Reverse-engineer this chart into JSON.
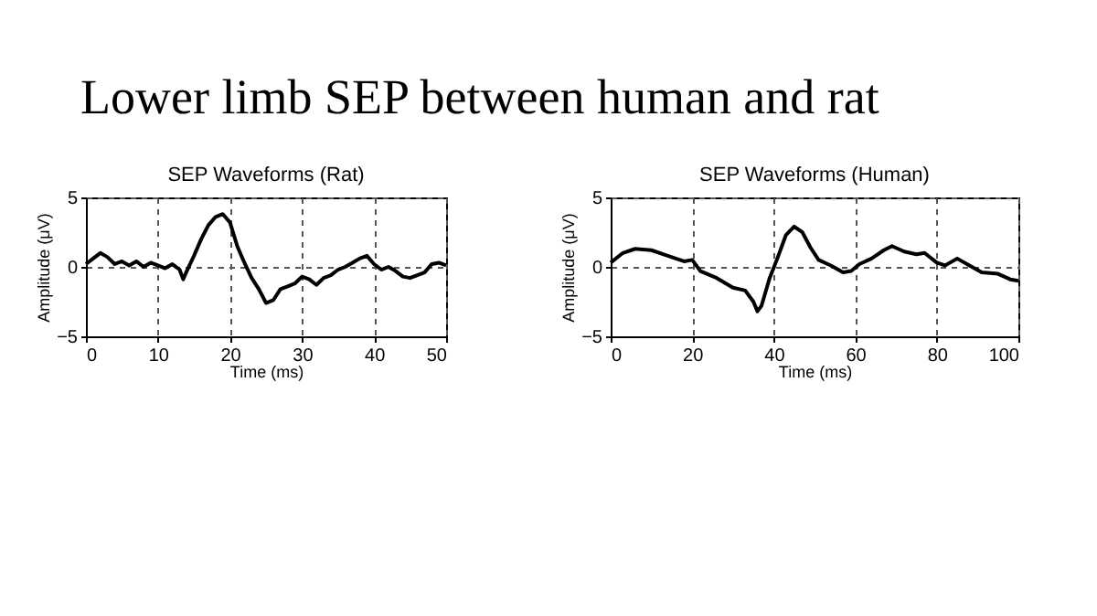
{
  "chart_data": [
    {
      "type": "line",
      "title": "SEP Waveforms (Rat)",
      "xlabel": "Time (ms)",
      "ylabel": "Amplitude (μV)",
      "annotations": [
        "Lower limb SEP between human and rat"
      ],
      "x": [
        0,
        1,
        2,
        3,
        4,
        5,
        6,
        7,
        8,
        9,
        10,
        11,
        12,
        13,
        13.5,
        14,
        15,
        16,
        17,
        18,
        19,
        20,
        21,
        22,
        23,
        24,
        25,
        26,
        27,
        28,
        29,
        30,
        31,
        32,
        33,
        34,
        35,
        36,
        37,
        38,
        39,
        40,
        41,
        42,
        43,
        44,
        45,
        46,
        47,
        48,
        49,
        50
      ],
      "series": [
        {
          "color": "#000000",
          "values": [
            0.2,
            0.6,
            1.0,
            0.7,
            0.2,
            0.4,
            0.1,
            0.4,
            0,
            0.3,
            0.1,
            -0.1,
            0.2,
            -0.2,
            -0.9,
            -0.3,
            0.8,
            2.0,
            3.0,
            3.6,
            3.8,
            3.2,
            1.5,
            0.3,
            -0.8,
            -1.6,
            -2.6,
            -2.4,
            -1.6,
            -1.4,
            -1.2,
            -0.7,
            -0.9,
            -1.3,
            -0.8,
            -0.6,
            -0.2,
            0,
            0.3,
            0.6,
            0.8,
            0.2,
            -0.2,
            0,
            -0.3,
            -0.7,
            -0.8,
            -0.6,
            -0.4,
            0.2,
            0.3,
            0.1
          ]
        }
      ],
      "xlim": [
        0,
        50
      ],
      "xticks": [
        0,
        10,
        20,
        30,
        40,
        50
      ],
      "ylim": [
        -5,
        5
      ],
      "yticks": [
        -5,
        0,
        5
      ],
      "grid": true,
      "line_style": "solid"
    },
    {
      "type": "line",
      "title": "SEP Waveforms (Human)",
      "xlabel": "Time (ms)",
      "ylabel": "Amplitude (μV)",
      "x": [
        0,
        3,
        6,
        10,
        14,
        18,
        20,
        22,
        26,
        30,
        33,
        35,
        36,
        37,
        39,
        41,
        43,
        45,
        47,
        49,
        51,
        54,
        57,
        59,
        61,
        64,
        67,
        69,
        72,
        75,
        77,
        80,
        82,
        85,
        88,
        91,
        95,
        98,
        100
      ],
      "series": [
        {
          "color": "#000000",
          "values": [
            0.3,
            1.0,
            1.3,
            1.2,
            0.8,
            0.4,
            0.5,
            -0.3,
            -0.8,
            -1.5,
            -1.7,
            -2.5,
            -3.2,
            -2.8,
            -0.8,
            0.7,
            2.3,
            2.9,
            2.5,
            1.4,
            0.5,
            0.1,
            -0.4,
            -0.3,
            0.2,
            0.6,
            1.2,
            1.5,
            1.1,
            0.9,
            1.0,
            0.3,
            0.1,
            0.6,
            0.1,
            -0.4,
            -0.5,
            -0.9,
            -1.0
          ]
        }
      ],
      "xlim": [
        0,
        100
      ],
      "xticks": [
        0,
        20,
        40,
        60,
        80,
        100
      ],
      "ylim": [
        -5,
        5
      ],
      "yticks": [
        -5,
        0,
        5
      ],
      "grid": true,
      "line_style": "solid"
    }
  ]
}
